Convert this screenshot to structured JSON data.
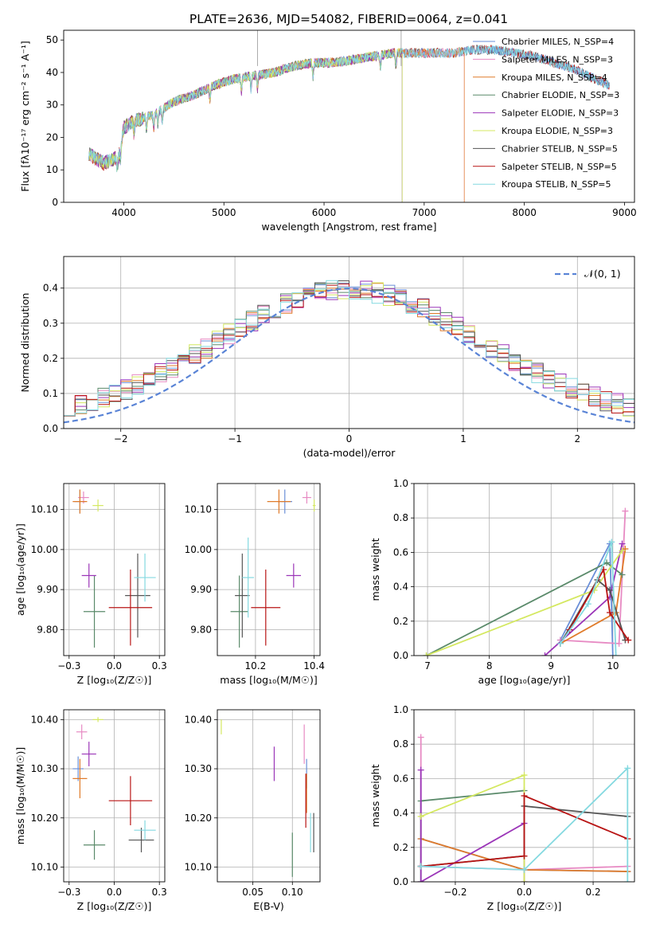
{
  "figure": {
    "title": "PLATE=2636, MJD=54082, FIBERID=0064, z=0.041"
  },
  "colors": {
    "Chabrier MILES": "#6a8fd8",
    "Salpeter MILES": "#e78ac3",
    "Kroupa MILES": "#e07b2a",
    "Chabrier ELODIE": "#5a8a6a",
    "Salpeter ELODIE": "#9b35b8",
    "Kroupa ELODIE": "#d4e860",
    "Chabrier STELIB": "#555555",
    "Salpeter STELIB": "#b81414",
    "Kroupa STELIB": "#84d9e0"
  },
  "chart_data": [
    {
      "id": "spectrum",
      "type": "line",
      "xlabel": "wavelength [Angstrom, rest frame]",
      "ylabel": "Flux [fλ10⁻¹⁷ erg cm⁻² s⁻¹ A⁻¹]",
      "xlim": [
        3400,
        9100
      ],
      "ylim": [
        0,
        53
      ],
      "xticks": [
        4000,
        5000,
        6000,
        7000,
        8000,
        9000
      ],
      "yticks": [
        0,
        10,
        20,
        30,
        40,
        50
      ],
      "legend": "right",
      "series": [
        {
          "name": "Chabrier MILES, N_SSP=4"
        },
        {
          "name": "Salpeter MILES, N_SSP=3"
        },
        {
          "name": "Kroupa MILES, N_SSP=4"
        },
        {
          "name": "Chabrier ELODIE, N_SSP=3"
        },
        {
          "name": "Salpeter ELODIE, N_SSP=3"
        },
        {
          "name": "Kroupa ELODIE, N_SSP=3"
        },
        {
          "name": "Chabrier STELIB, N_SSP=5"
        },
        {
          "name": "Salpeter STELIB, N_SSP=5"
        },
        {
          "name": "Kroupa STELIB, N_SSP=5"
        }
      ],
      "continuum": {
        "x": [
          3650,
          3800,
          3950,
          4000,
          4100,
          4300,
          4500,
          4700,
          4900,
          5100,
          5300,
          5500,
          5700,
          5900,
          6100,
          6300,
          6500,
          6700,
          6900,
          7100,
          7300,
          7500,
          7700,
          7900,
          8100,
          8300,
          8500,
          8700,
          8850
        ],
        "y": [
          15,
          12,
          14,
          23,
          25,
          27,
          31,
          33,
          36,
          38,
          39,
          40,
          42,
          43,
          43,
          44,
          45,
          46,
          46,
          46,
          46,
          47,
          47,
          46,
          45,
          43,
          41,
          38,
          36
        ]
      },
      "data_ranges": [
        {
          "series": "Chabrier MILES",
          "xmax": 8850
        },
        {
          "series": "Salpeter MILES",
          "xmax": 7400
        },
        {
          "series": "Kroupa MILES",
          "xmax": 7400
        },
        {
          "series": "Chabrier ELODIE",
          "xmax": 6780
        },
        {
          "series": "Salpeter ELODIE",
          "xmax": 6780
        },
        {
          "series": "Kroupa ELODIE",
          "xmax": 6780
        },
        {
          "series": "Chabrier STELIB",
          "xmax": 8850
        },
        {
          "series": "Salpeter STELIB",
          "xmax": 8850
        },
        {
          "series": "Kroupa STELIB",
          "xmax": 8850
        }
      ]
    },
    {
      "id": "residuals",
      "type": "step",
      "xlabel": "(data-model)/error",
      "ylabel": "Normed distribution",
      "xlim": [
        -2.5,
        2.5
      ],
      "ylim": [
        0,
        0.49
      ],
      "xticks": [
        -2,
        -1,
        0,
        1,
        2
      ],
      "yticks": [
        0.0,
        0.1,
        0.2,
        0.3,
        0.4
      ],
      "grid": true,
      "legend": "top-right",
      "reference": {
        "name": "𝒩(0, 1)",
        "mean": 0,
        "sigma": 1
      },
      "bin_width": 0.1,
      "bin_start": -2.5
    },
    {
      "id": "age-vs-Z",
      "type": "errorbar",
      "xlabel": "Z [log₁₀(Z/Z☉)]",
      "ylabel": "age  [log₁₀(age/yr)]",
      "xlim": [
        -0.28,
        0.28
      ],
      "ylim": [
        9.735,
        10.165
      ],
      "xticks": [
        -0.25,
        0.0,
        0.25
      ],
      "yticks": [
        9.8,
        9.9,
        10.0,
        10.1
      ],
      "grid": true,
      "points": [
        {
          "series": "Chabrier MILES",
          "x": -0.19,
          "y": 10.12,
          "xerr": 0.03,
          "yerr": 0.03
        },
        {
          "series": "Salpeter MILES",
          "x": -0.17,
          "y": 10.13,
          "xerr": 0.03,
          "yerr": 0.015
        },
        {
          "series": "Kroupa MILES",
          "x": -0.19,
          "y": 10.12,
          "xerr": 0.04,
          "yerr": 0.03
        },
        {
          "series": "Chabrier ELODIE",
          "x": -0.11,
          "y": 9.845,
          "xerr": 0.06,
          "yerr": 0.09
        },
        {
          "series": "Salpeter ELODIE",
          "x": -0.14,
          "y": 9.935,
          "xerr": 0.04,
          "yerr": 0.03
        },
        {
          "series": "Kroupa ELODIE",
          "x": -0.09,
          "y": 10.11,
          "xerr": 0.03,
          "yerr": 0.015
        },
        {
          "series": "Chabrier STELIB",
          "x": 0.13,
          "y": 9.885,
          "xerr": 0.07,
          "yerr": 0.105
        },
        {
          "series": "Salpeter STELIB",
          "x": 0.09,
          "y": 9.855,
          "xerr": 0.12,
          "yerr": 0.095
        },
        {
          "series": "Kroupa STELIB",
          "x": 0.17,
          "y": 9.93,
          "xerr": 0.06,
          "yerr": 0.06
        }
      ]
    },
    {
      "id": "age-vs-mass",
      "type": "errorbar",
      "xlabel": "mass [log₁₀(M/M☉)]",
      "ylabel": "",
      "xlim": [
        10.07,
        10.42
      ],
      "ylim": [
        9.735,
        10.165
      ],
      "xticks": [
        10.2,
        10.4
      ],
      "yticks": [
        9.8,
        9.9,
        10.0,
        10.1
      ],
      "grid": true,
      "points": [
        {
          "series": "Chabrier MILES",
          "x": 10.3,
          "y": 10.12,
          "xerr": 0.025,
          "yerr": 0.03
        },
        {
          "series": "Salpeter MILES",
          "x": 10.375,
          "y": 10.13,
          "xerr": 0.015,
          "yerr": 0.015
        },
        {
          "series": "Kroupa MILES",
          "x": 10.28,
          "y": 10.12,
          "xerr": 0.04,
          "yerr": 0.03
        },
        {
          "series": "Chabrier ELODIE",
          "x": 10.145,
          "y": 9.845,
          "xerr": 0.03,
          "yerr": 0.09
        },
        {
          "series": "Salpeter ELODIE",
          "x": 10.33,
          "y": 9.935,
          "xerr": 0.025,
          "yerr": 0.03
        },
        {
          "series": "Kroupa ELODIE",
          "x": 10.4,
          "y": 10.11,
          "xerr": 0.005,
          "yerr": 0.015
        },
        {
          "series": "Chabrier STELIB",
          "x": 10.155,
          "y": 9.885,
          "xerr": 0.025,
          "yerr": 0.105
        },
        {
          "series": "Salpeter STELIB",
          "x": 10.235,
          "y": 9.855,
          "xerr": 0.05,
          "yerr": 0.095
        },
        {
          "series": "Kroupa STELIB",
          "x": 10.175,
          "y": 9.93,
          "xerr": 0.02,
          "yerr": 0.1
        }
      ]
    },
    {
      "id": "weight-vs-age",
      "type": "line",
      "xlabel": "age  [log₁₀(age/yr)]",
      "ylabel": "mass weight",
      "xlim": [
        6.78,
        10.35
      ],
      "ylim": [
        0,
        1
      ],
      "xticks": [
        7,
        8,
        9,
        10
      ],
      "yticks": [
        0.0,
        0.2,
        0.4,
        0.6,
        0.8,
        1.0
      ],
      "grid": true,
      "series": [
        {
          "series": "Chabrier MILES",
          "x": [
            9.15,
            9.95,
            10.0
          ],
          "y": [
            0.09,
            0.65,
            0.0
          ]
        },
        {
          "series": "Salpeter MILES",
          "x": [
            9.15,
            10.1,
            10.2
          ],
          "y": [
            0.09,
            0.07,
            0.84
          ]
        },
        {
          "series": "Kroupa MILES",
          "x": [
            9.15,
            10.05,
            10.2
          ],
          "y": [
            0.07,
            0.25,
            0.62
          ]
        },
        {
          "series": "Chabrier ELODIE",
          "x": [
            6.98,
            9.9,
            10.15
          ],
          "y": [
            0.0,
            0.54,
            0.47
          ]
        },
        {
          "series": "Salpeter ELODIE",
          "x": [
            8.9,
            9.95,
            10.15
          ],
          "y": [
            0.0,
            0.34,
            0.65
          ]
        },
        {
          "series": "Kroupa ELODIE",
          "x": [
            6.98,
            9.7,
            10.15
          ],
          "y": [
            0.0,
            0.38,
            0.61
          ]
        },
        {
          "series": "Chabrier STELIB",
          "x": [
            9.15,
            9.75,
            9.95,
            10.2
          ],
          "y": [
            0.07,
            0.44,
            0.38,
            0.09
          ]
        },
        {
          "series": "Salpeter STELIB",
          "x": [
            9.3,
            9.85,
            9.95,
            10.25
          ],
          "y": [
            0.15,
            0.5,
            0.25,
            0.09
          ]
        },
        {
          "series": "Kroupa STELIB",
          "x": [
            9.15,
            9.6,
            9.98,
            10.05
          ],
          "y": [
            0.07,
            0.3,
            0.66,
            0.0
          ]
        }
      ]
    },
    {
      "id": "mass-vs-Z",
      "type": "errorbar",
      "xlabel": "Z [log₁₀(Z/Z☉)]",
      "ylabel": "mass [log₁₀(M/M☉)]",
      "xlim": [
        -0.28,
        0.28
      ],
      "ylim": [
        10.07,
        10.42
      ],
      "xticks": [
        -0.25,
        0.0,
        0.25
      ],
      "yticks": [
        10.1,
        10.2,
        10.3,
        10.4
      ],
      "grid": true,
      "points": [
        {
          "series": "Chabrier MILES",
          "x": -0.2,
          "y": 10.3,
          "xerr": 0.03,
          "yerr": 0.025
        },
        {
          "series": "Salpeter MILES",
          "x": -0.18,
          "y": 10.375,
          "xerr": 0.03,
          "yerr": 0.015
        },
        {
          "series": "Kroupa MILES",
          "x": -0.19,
          "y": 10.28,
          "xerr": 0.04,
          "yerr": 0.04
        },
        {
          "series": "Chabrier ELODIE",
          "x": -0.11,
          "y": 10.145,
          "xerr": 0.06,
          "yerr": 0.03
        },
        {
          "series": "Salpeter ELODIE",
          "x": -0.14,
          "y": 10.33,
          "xerr": 0.04,
          "yerr": 0.025
        },
        {
          "series": "Kroupa ELODIE",
          "x": -0.09,
          "y": 10.4,
          "xerr": 0.03,
          "yerr": 0.005
        },
        {
          "series": "Chabrier STELIB",
          "x": 0.15,
          "y": 10.155,
          "xerr": 0.07,
          "yerr": 0.025
        },
        {
          "series": "Salpeter STELIB",
          "x": 0.09,
          "y": 10.235,
          "xerr": 0.12,
          "yerr": 0.05
        },
        {
          "series": "Kroupa STELIB",
          "x": 0.17,
          "y": 10.175,
          "xerr": 0.06,
          "yerr": 0.02
        }
      ]
    },
    {
      "id": "mass-vs-EBV",
      "type": "errorbar",
      "xlabel": "E(B-V)",
      "ylabel": "",
      "xlim": [
        0.005,
        0.135
      ],
      "ylim": [
        10.07,
        10.42
      ],
      "xticks": [
        0.05,
        0.1
      ],
      "yticks": [
        10.1,
        10.2,
        10.3,
        10.4
      ],
      "grid": true,
      "points": [
        {
          "series": "Chabrier MILES",
          "x": 0.118,
          "y": 10.29,
          "xerr": 0.0,
          "yerr": 0.03
        },
        {
          "series": "Salpeter MILES",
          "x": 0.115,
          "y": 10.35,
          "xerr": 0.0,
          "yerr": 0.04
        },
        {
          "series": "Kroupa MILES",
          "x": 0.118,
          "y": 10.25,
          "xerr": 0.0,
          "yerr": 0.04
        },
        {
          "series": "Chabrier ELODIE",
          "x": 0.1,
          "y": 10.125,
          "xerr": 0.0,
          "yerr": 0.045
        },
        {
          "series": "Salpeter ELODIE",
          "x": 0.077,
          "y": 10.31,
          "xerr": 0.0,
          "yerr": 0.035
        },
        {
          "series": "Kroupa ELODIE",
          "x": 0.01,
          "y": 10.385,
          "xerr": 0.0,
          "yerr": 0.015
        },
        {
          "series": "Chabrier STELIB",
          "x": 0.127,
          "y": 10.17,
          "xerr": 0.0,
          "yerr": 0.04
        },
        {
          "series": "Salpeter STELIB",
          "x": 0.117,
          "y": 10.235,
          "xerr": 0.0,
          "yerr": 0.055
        },
        {
          "series": "Kroupa STELIB",
          "x": 0.123,
          "y": 10.17,
          "xerr": 0.0,
          "yerr": 0.04
        }
      ]
    },
    {
      "id": "weight-vs-Z",
      "type": "line",
      "xlabel": "Z [log₁₀(Z/Z☉)]",
      "ylabel": "mass weight",
      "xlim": [
        -0.32,
        0.32
      ],
      "ylim": [
        0,
        1
      ],
      "xticks": [
        -0.2,
        0.0,
        0.2
      ],
      "yticks": [
        0.0,
        0.2,
        0.4,
        0.6,
        0.8,
        1.0
      ],
      "grid": true,
      "series": [
        {
          "series": "Chabrier MILES",
          "x": [
            -0.3,
            0.0,
            0.3
          ],
          "y": [
            0.25,
            0.07,
            0.06
          ]
        },
        {
          "series": "Salpeter MILES",
          "x": [
            -0.3,
            -0.3,
            0.0,
            0.3
          ],
          "y": [
            0.84,
            0.09,
            0.07,
            0.09
          ]
        },
        {
          "series": "Kroupa MILES",
          "x": [
            -0.3,
            0.0,
            0.3
          ],
          "y": [
            0.25,
            0.07,
            0.06
          ]
        },
        {
          "series": "Chabrier ELODIE",
          "x": [
            -0.3,
            -0.3,
            0.0
          ],
          "y": [
            0.0,
            0.47,
            0.53
          ]
        },
        {
          "series": "Salpeter ELODIE",
          "x": [
            -0.3,
            -0.3,
            0.0,
            0.0
          ],
          "y": [
            0.65,
            0.0,
            0.34,
            0.0
          ]
        },
        {
          "series": "Kroupa ELODIE",
          "x": [
            -0.3,
            0.0,
            0.0
          ],
          "y": [
            0.38,
            0.62,
            0.0
          ]
        },
        {
          "series": "Chabrier STELIB",
          "x": [
            -0.3,
            -0.3,
            0.0,
            0.0,
            0.3
          ],
          "y": [
            0.09,
            0.09,
            0.15,
            0.44,
            0.38
          ]
        },
        {
          "series": "Salpeter STELIB",
          "x": [
            -0.3,
            0.0,
            0.0,
            0.3
          ],
          "y": [
            0.09,
            0.15,
            0.5,
            0.25
          ]
        },
        {
          "series": "Kroupa STELIB",
          "x": [
            -0.3,
            0.0,
            0.3,
            0.3
          ],
          "y": [
            0.09,
            0.07,
            0.66,
            0.0
          ]
        }
      ]
    }
  ]
}
